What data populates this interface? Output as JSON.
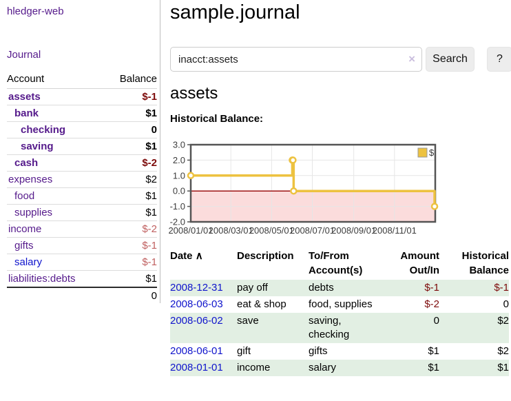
{
  "app": {
    "title": "hledger-web"
  },
  "sidebar": {
    "journal_link": "Journal",
    "accounts_table": {
      "headers": {
        "account": "Account",
        "balance": "Balance"
      },
      "rows": [
        {
          "name": "assets",
          "balance": "$-1",
          "indent": 0,
          "bold": true,
          "name_style": "purple",
          "balance_style": "neg-strong"
        },
        {
          "name": "bank",
          "balance": "$1",
          "indent": 1,
          "bold": true,
          "name_style": "purple",
          "balance_style": "black"
        },
        {
          "name": "checking",
          "balance": "0",
          "indent": 2,
          "bold": true,
          "name_style": "purple",
          "balance_style": "black"
        },
        {
          "name": "saving",
          "balance": "$1",
          "indent": 2,
          "bold": true,
          "name_style": "purple",
          "balance_style": "black"
        },
        {
          "name": "cash",
          "balance": "$-2",
          "indent": 1,
          "bold": true,
          "name_style": "purple",
          "balance_style": "neg-strong"
        },
        {
          "name": "expenses",
          "balance": "$2",
          "indent": 0,
          "bold": false,
          "name_style": "purple",
          "balance_style": "black"
        },
        {
          "name": "food",
          "balance": "$1",
          "indent": 1,
          "bold": false,
          "name_style": "purple",
          "balance_style": "black"
        },
        {
          "name": "supplies",
          "balance": "$1",
          "indent": 1,
          "bold": false,
          "name_style": "purple",
          "balance_style": "black"
        },
        {
          "name": "income",
          "balance": "$-2",
          "indent": 0,
          "bold": false,
          "name_style": "purple",
          "balance_style": "neg-muted"
        },
        {
          "name": "gifts",
          "balance": "$-1",
          "indent": 1,
          "bold": false,
          "name_style": "purple",
          "balance_style": "neg-muted"
        },
        {
          "name": "salary",
          "balance": "$-1",
          "indent": 1,
          "bold": false,
          "name_style": "blue",
          "balance_style": "neg-muted"
        },
        {
          "name": "liabilities:debts",
          "balance": "$1",
          "indent": 0,
          "bold": false,
          "name_style": "purple",
          "balance_style": "black"
        }
      ],
      "total": "0"
    }
  },
  "main": {
    "title": "sample.journal",
    "search": {
      "value": "inacct:assets",
      "clear_icon": "×",
      "search_button": "Search",
      "help_button": "?"
    },
    "account_heading": "assets",
    "chart_heading": "Historical Balance:",
    "register": {
      "headers": {
        "date": "Date",
        "description": "Description",
        "accounts": "To/From Account(s)",
        "amount": "Amount Out/In",
        "balance": "Historical Balance"
      },
      "sort_indicator": "∧",
      "rows": [
        {
          "date": "2008-12-31",
          "description": "pay off",
          "accounts": "debts",
          "amount": "$-1",
          "balance": "$-1",
          "amount_style": "neg-strong",
          "balance_style": "neg-strong"
        },
        {
          "date": "2008-06-03",
          "description": "eat & shop",
          "accounts": "food, supplies",
          "amount": "$-2",
          "balance": "0",
          "amount_style": "neg-strong",
          "balance_style": "black"
        },
        {
          "date": "2008-06-02",
          "description": "save",
          "accounts": "saving, checking",
          "amount": "0",
          "balance": "$2",
          "amount_style": "black",
          "balance_style": "black"
        },
        {
          "date": "2008-06-01",
          "description": "gift",
          "accounts": "gifts",
          "amount": "$1",
          "balance": "$2",
          "amount_style": "black",
          "balance_style": "black"
        },
        {
          "date": "2008-01-01",
          "description": "income",
          "accounts": "salary",
          "amount": "$1",
          "balance": "$1",
          "amount_style": "black",
          "balance_style": "black"
        }
      ]
    }
  },
  "chart_data": {
    "type": "line",
    "title": "Historical Balance:",
    "step": true,
    "xlim": [
      "2008-01-01",
      "2009-01-01"
    ],
    "ylim": [
      -2,
      3
    ],
    "x_ticks": [
      "2008/01/01",
      "2008/03/01",
      "2008/05/01",
      "2008/07/01",
      "2008/09/01",
      "2008/11/01"
    ],
    "y_ticks": [
      "3.0",
      "2.0",
      "1.0",
      "0.0",
      "-1.0",
      "-2.0"
    ],
    "grid": true,
    "legend": {
      "label": "$",
      "position": "top-right"
    },
    "series": [
      {
        "name": "$",
        "color": "#edc240",
        "points": [
          {
            "x": "2008-01-01",
            "y": 1
          },
          {
            "x": "2008-06-01",
            "y": 2
          },
          {
            "x": "2008-06-02",
            "y": 2
          },
          {
            "x": "2008-06-03",
            "y": 0
          },
          {
            "x": "2008-12-31",
            "y": -1
          }
        ]
      }
    ],
    "negative_region_fill": "#fbdcdc",
    "zero_line_color": "#9c1212",
    "border_color": "#545454",
    "gridline_color": "#e6e6e6",
    "axis_text_color": "#3c3c3c"
  },
  "colors": {
    "link_purple": "#551a8b",
    "link_blue": "#0f14cc",
    "negative_strong": "#7d0b0b",
    "negative_muted": "#c06060",
    "row_green": "#e2efe3",
    "series_gold": "#edc240"
  }
}
